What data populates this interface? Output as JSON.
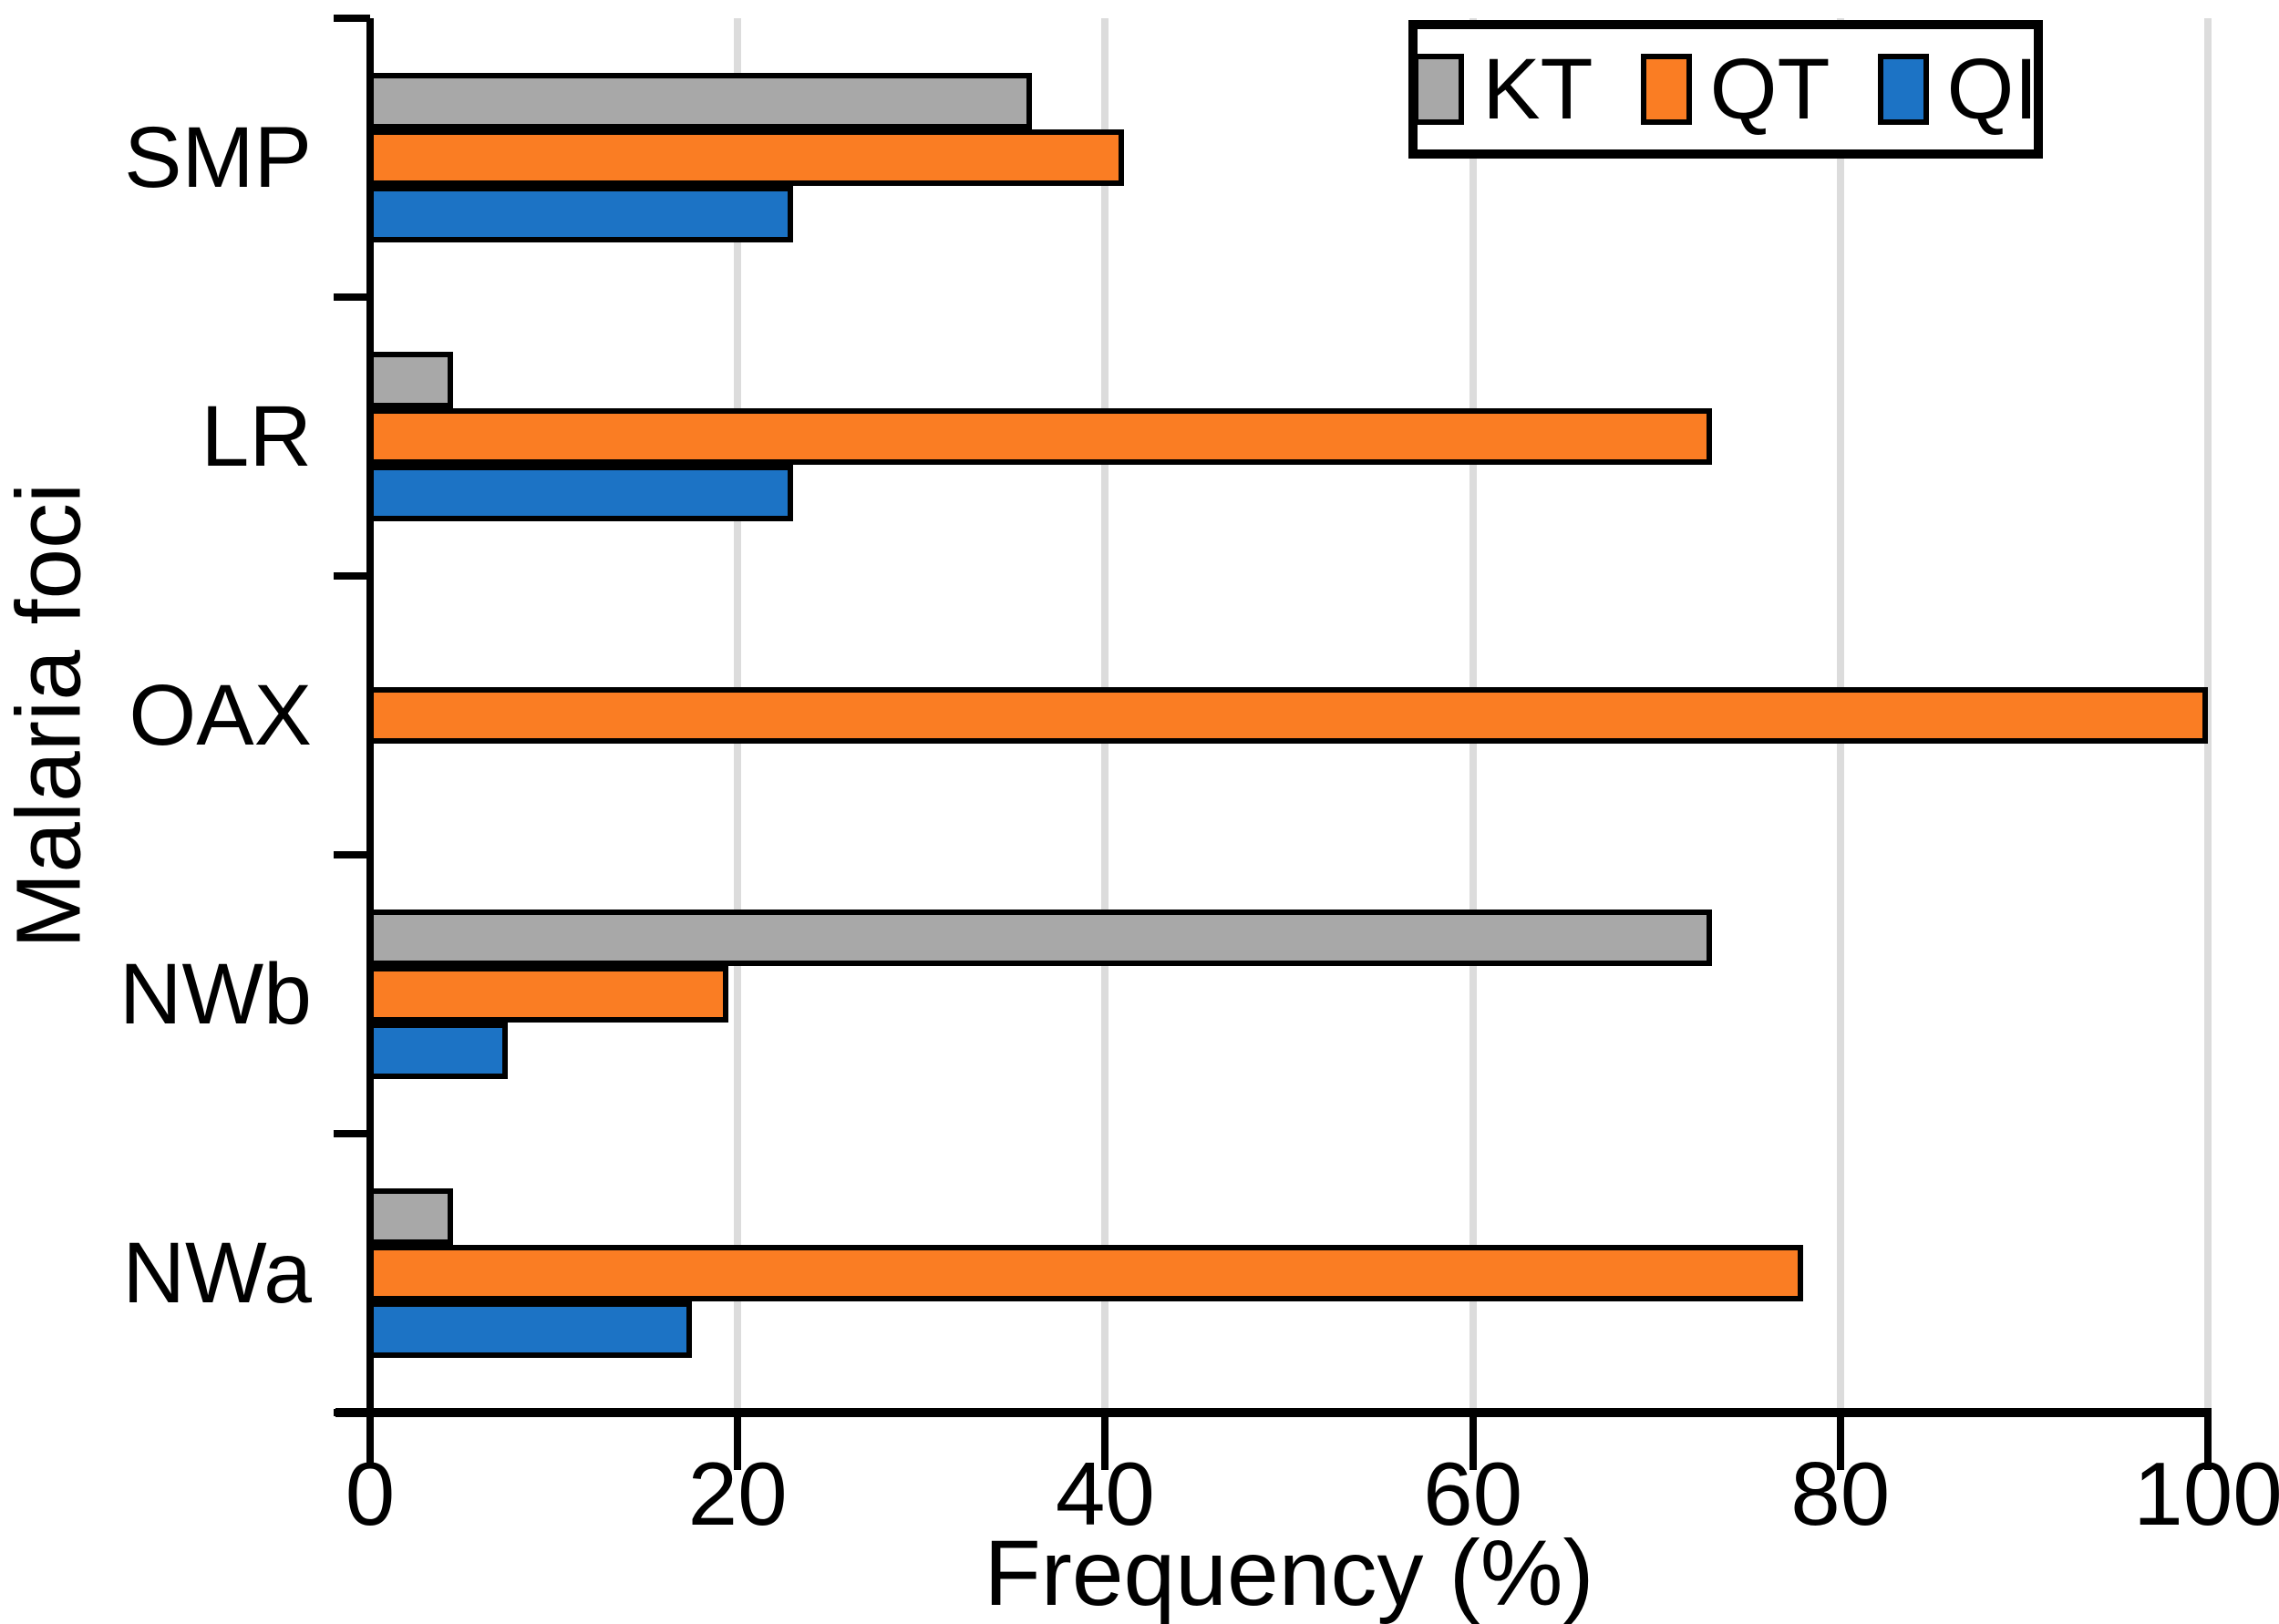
{
  "chart_data": {
    "type": "bar",
    "orientation": "horizontal",
    "title": "",
    "xlabel": "Frequency (%)",
    "ylabel": "Malaria foci",
    "categories": [
      "SMP",
      "LR",
      "OAX",
      "NWb",
      "NWa"
    ],
    "series": [
      {
        "name": "KT",
        "color": "#a8a8a8",
        "values": [
          36,
          4.5,
          0,
          73,
          4.5
        ]
      },
      {
        "name": "QT",
        "color": "#fa7d23",
        "values": [
          41,
          73,
          100,
          19.5,
          78
        ]
      },
      {
        "name": "QI",
        "color": "#1c73c5",
        "values": [
          23,
          23,
          0,
          7.5,
          17.5
        ]
      }
    ],
    "xlim": [
      0,
      100
    ],
    "xticks": [
      0,
      20,
      40,
      60,
      80,
      100
    ],
    "grid": "vertical-light-gray",
    "gridline_color": "#dcdcdc",
    "bar_edge_color": "#000000",
    "legend_position": "top-right",
    "legend_labels": [
      "KT",
      "QT",
      "QI"
    ]
  }
}
